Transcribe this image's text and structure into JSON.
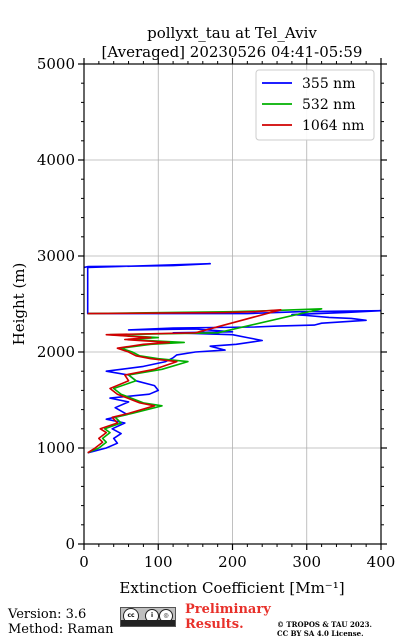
{
  "chart_data": {
    "type": "line",
    "title": "pollyxt_tau at Tel_Aviv",
    "subtitle": "[Averaged] 20230526 04:41-05:59",
    "xlabel": "Extinction Coefficient [Mm⁻¹]",
    "ylabel": "Height (m)",
    "xlim": [
      0,
      400
    ],
    "ylim": [
      0,
      5000
    ],
    "xticks": [
      0,
      100,
      200,
      300,
      400
    ],
    "yticks": [
      0,
      1000,
      2000,
      3000,
      4000,
      5000
    ],
    "grid": true,
    "legend_position": "top-right",
    "series": [
      {
        "name": "355 nm",
        "color": "#0000ff",
        "x": [
          5,
          30,
          45,
          40,
          50,
          38,
          55,
          30,
          58,
          42,
          60,
          35,
          88,
          100,
          95,
          70,
          60,
          30,
          80,
          110,
          120,
          125,
          150,
          190,
          170,
          205,
          240,
          220,
          200,
          120,
          200,
          150,
          60,
          120,
          230,
          260,
          310,
          320,
          380,
          360,
          330,
          300,
          280,
          350,
          400,
          290,
          220,
          5,
          5,
          170,
          120,
          5,
          0
        ],
        "y": [
          950,
          1000,
          1050,
          1100,
          1150,
          1200,
          1260,
          1300,
          1350,
          1420,
          1480,
          1520,
          1560,
          1600,
          1650,
          1700,
          1760,
          1800,
          1850,
          1900,
          1940,
          1970,
          2000,
          2020,
          2060,
          2080,
          2120,
          2150,
          2180,
          2200,
          2210,
          2240,
          2230,
          2250,
          2260,
          2270,
          2280,
          2300,
          2330,
          2350,
          2360,
          2380,
          2390,
          2410,
          2430,
          2420,
          2400,
          2400,
          2880,
          2920,
          2900,
          2890,
          2880
        ]
      },
      {
        "name": "532 nm",
        "color": "#00b000",
        "x": [
          5,
          20,
          30,
          25,
          35,
          28,
          50,
          42,
          65,
          105,
          80,
          70,
          50,
          40,
          70,
          60,
          105,
          140,
          100,
          75,
          65,
          50,
          90,
          135,
          60,
          100,
          35,
          180,
          320,
          250,
          200,
          5
        ],
        "y": [
          950,
          1000,
          1060,
          1100,
          1160,
          1200,
          1260,
          1320,
          1360,
          1440,
          1470,
          1500,
          1560,
          1620,
          1700,
          1760,
          1820,
          1900,
          1930,
          1960,
          2000,
          2040,
          2080,
          2100,
          2130,
          2150,
          2180,
          2200,
          2450,
          2430,
          2420,
          2400
        ]
      },
      {
        "name": "1064 nm",
        "color": "#d00000",
        "x": [
          5,
          15,
          25,
          20,
          30,
          22,
          45,
          38,
          60,
          95,
          75,
          65,
          45,
          35,
          60,
          55,
          95,
          125,
          90,
          70,
          60,
          45,
          80,
          115,
          55,
          90,
          30,
          150,
          265,
          230,
          190,
          5
        ],
        "y": [
          950,
          1000,
          1060,
          1100,
          1160,
          1200,
          1260,
          1320,
          1360,
          1440,
          1470,
          1500,
          1560,
          1620,
          1700,
          1760,
          1820,
          1900,
          1930,
          1960,
          2000,
          2040,
          2080,
          2100,
          2130,
          2150,
          2180,
          2200,
          2440,
          2420,
          2410,
          2400
        ]
      }
    ]
  },
  "footer": {
    "version": "Version: 3.6",
    "method": "Method: Raman",
    "preliminary": [
      "Preliminary",
      "Results."
    ],
    "copyright": [
      "© TROPOS & TAU 2023.",
      "CC BY SA 4.0 License."
    ],
    "license_badge": {
      "icons": [
        "cc",
        "by",
        "sa"
      ],
      "icon_name": "cc-by-sa-badge"
    }
  }
}
